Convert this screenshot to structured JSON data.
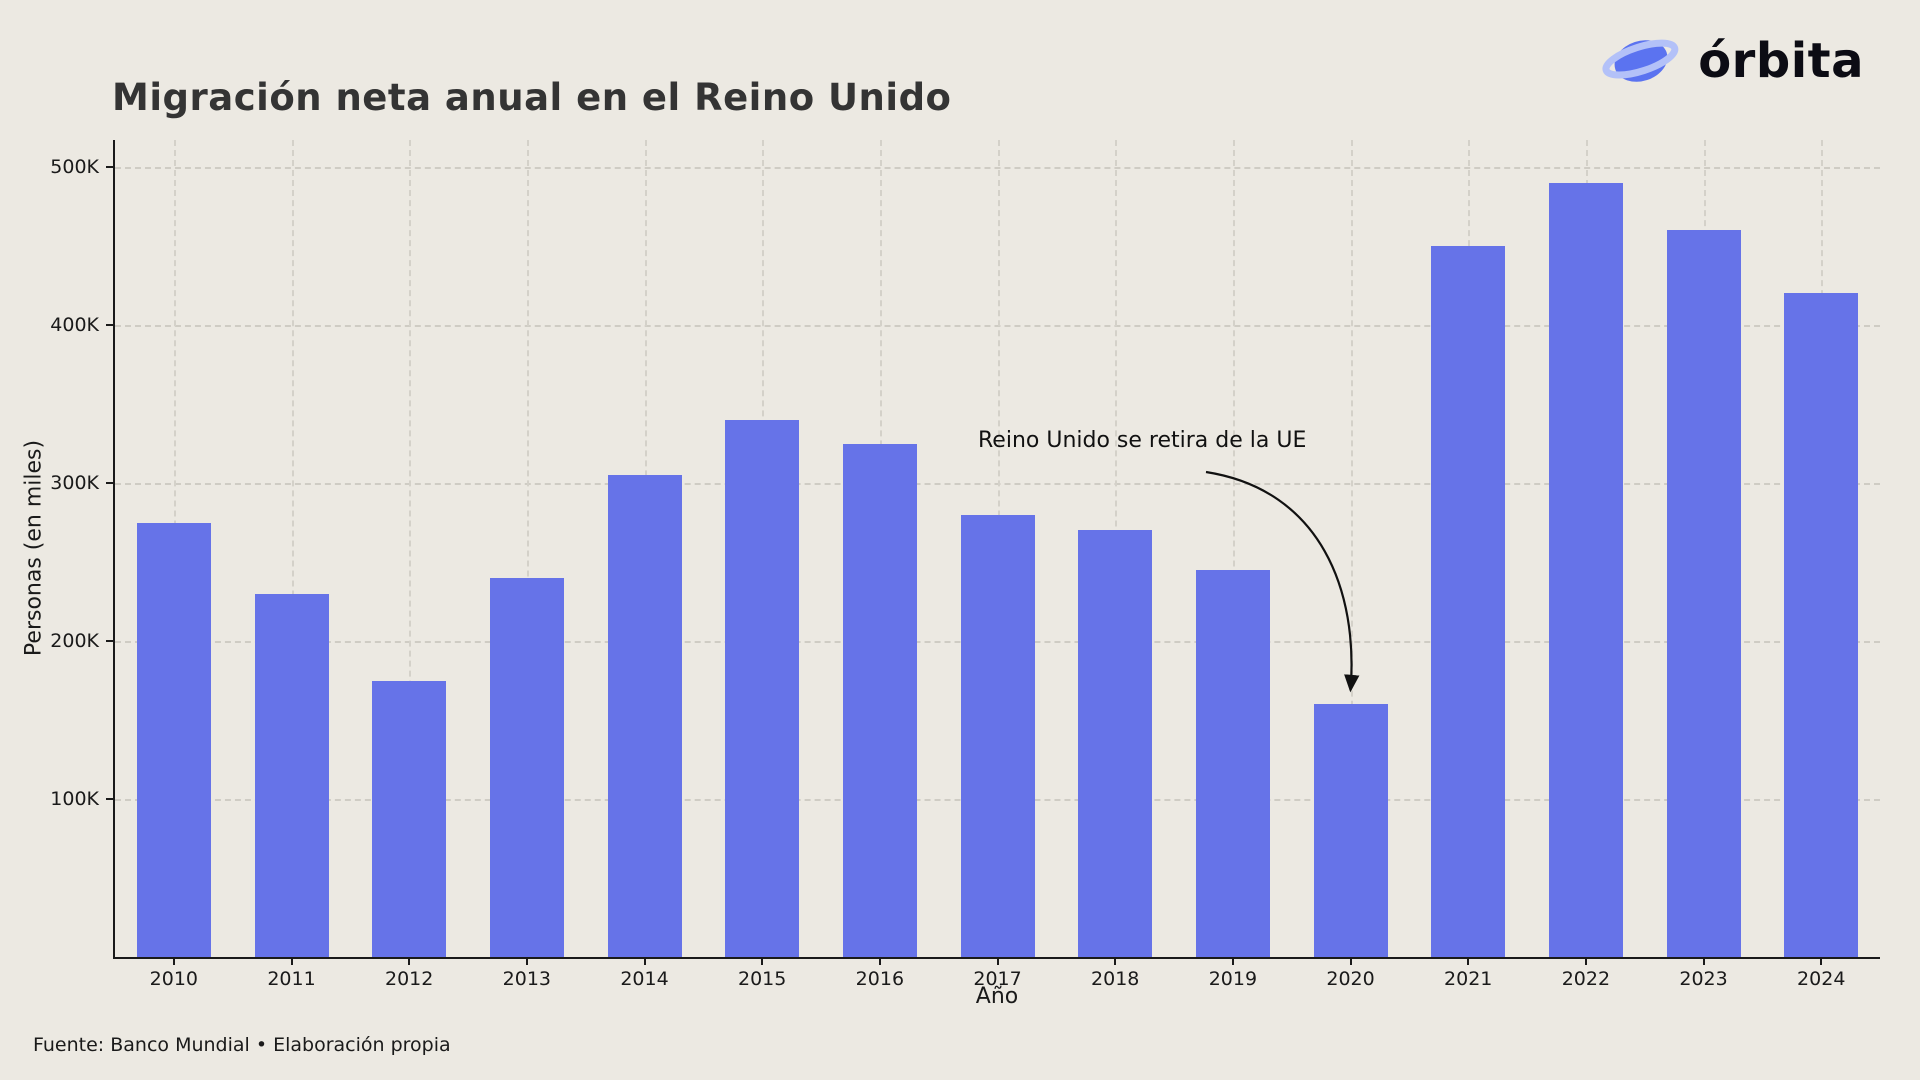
{
  "logo": {
    "text": "órbita",
    "icon": "planet-orbit-icon",
    "planet_color": "#5b73f0",
    "ring_color": "#b3c1f8"
  },
  "chart_data": {
    "type": "bar",
    "title": "Migración neta anual en el Reino Unido",
    "xlabel": "Año",
    "ylabel": "Personas (en miles)",
    "categories": [
      "2010",
      "2011",
      "2012",
      "2013",
      "2014",
      "2015",
      "2016",
      "2017",
      "2018",
      "2019",
      "2020",
      "2021",
      "2022",
      "2023",
      "2024"
    ],
    "values": [
      275,
      230,
      175,
      240,
      305,
      340,
      325,
      280,
      270,
      245,
      160,
      450,
      490,
      460,
      420
    ],
    "bar_color": "#6673e8",
    "ylim": [
      0,
      517
    ],
    "yticks": [
      {
        "value": 100,
        "label": "100K"
      },
      {
        "value": 200,
        "label": "200K"
      },
      {
        "value": 300,
        "label": "300K"
      },
      {
        "value": 400,
        "label": "400K"
      },
      {
        "value": 500,
        "label": "500K"
      }
    ],
    "grid": "dashed",
    "legend": "none",
    "annotation": {
      "text": "Reino Unido se retira de la UE",
      "target_category": "2020",
      "target_value": 160
    }
  },
  "footer": {
    "text": "Fuente: Banco Mundial • Elaboración propia"
  }
}
